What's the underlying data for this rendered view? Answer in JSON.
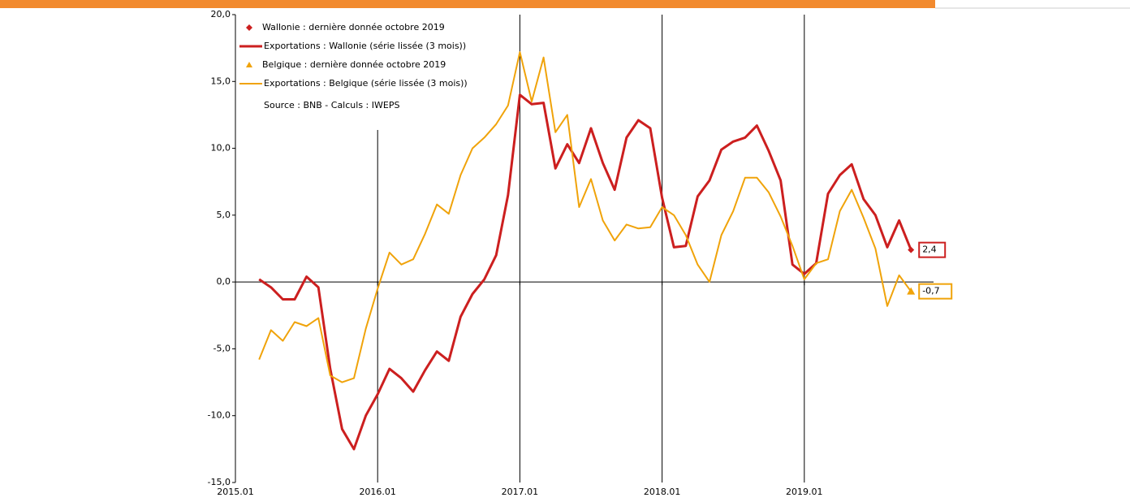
{
  "chart_data": {
    "type": "line",
    "x": [
      "2015.03",
      "2015.04",
      "2015.05",
      "2015.06",
      "2015.07",
      "2015.08",
      "2015.09",
      "2015.10",
      "2015.11",
      "2015.12",
      "2016.01",
      "2016.02",
      "2016.03",
      "2016.04",
      "2016.05",
      "2016.06",
      "2016.07",
      "2016.08",
      "2016.09",
      "2016.10",
      "2016.11",
      "2016.12",
      "2017.01",
      "2017.02",
      "2017.03",
      "2017.04",
      "2017.05",
      "2017.06",
      "2017.07",
      "2017.08",
      "2017.09",
      "2017.10",
      "2017.11",
      "2017.12",
      "2018.01",
      "2018.02",
      "2018.03",
      "2018.04",
      "2018.05",
      "2018.06",
      "2018.07",
      "2018.08",
      "2018.09",
      "2018.10",
      "2018.11",
      "2018.12",
      "2019.01",
      "2019.02",
      "2019.03",
      "2019.04",
      "2019.05",
      "2019.06",
      "2019.07",
      "2019.08",
      "2019.09",
      "2019.10"
    ],
    "series": [
      {
        "name": "Wallonie : dernière donnée octobre 2019",
        "color": "#cc1f1f",
        "marker": "diamond",
        "x": [
          "2019.10"
        ],
        "values": [
          2.4
        ],
        "value_labels": [
          "2,4"
        ]
      },
      {
        "name": "Exportations : Wallonie (série lissée (3 mois))",
        "color": "#cc1f1f",
        "width": 3,
        "values": [
          0.2,
          -0.4,
          -1.3,
          -1.3,
          0.4,
          -0.4,
          -6.5,
          -11.0,
          -12.5,
          -10.0,
          -8.4,
          -6.5,
          -7.2,
          -8.2,
          -6.6,
          -5.2,
          -5.9,
          -2.6,
          -0.9,
          0.2,
          2.0,
          6.5,
          14.0,
          13.3,
          13.4,
          8.5,
          10.3,
          8.9,
          11.5,
          8.9,
          6.9,
          10.8,
          12.1,
          11.5,
          6.3,
          2.6,
          2.7,
          6.4,
          7.6,
          9.9,
          10.5,
          10.8,
          11.7,
          9.8,
          7.6,
          1.3,
          0.6,
          1.4,
          6.6,
          8.0,
          8.8,
          6.2,
          5.0,
          2.6,
          4.6,
          2.4
        ]
      },
      {
        "name": "Belgique : dernière donnée octobre 2019",
        "color": "#f0a30a",
        "marker": "triangle",
        "x": [
          "2019.10"
        ],
        "values": [
          -0.7
        ],
        "value_labels": [
          "-0,7"
        ]
      },
      {
        "name": "Exportations : Belgique (série lissée (3 mois))",
        "color": "#f0a30a",
        "width": 2,
        "values": [
          -5.8,
          -3.6,
          -4.4,
          -3.0,
          -3.3,
          -2.7,
          -7.0,
          -7.5,
          -7.2,
          -3.5,
          -0.5,
          2.2,
          1.3,
          1.7,
          3.6,
          5.8,
          5.1,
          8.0,
          10.0,
          10.8,
          11.8,
          13.2,
          17.2,
          13.5,
          16.8,
          11.2,
          12.5,
          5.6,
          7.7,
          4.6,
          3.1,
          4.3,
          4.0,
          4.1,
          5.6,
          5.0,
          3.5,
          1.3,
          0.0,
          3.5,
          5.3,
          7.8,
          7.8,
          6.7,
          4.9,
          2.7,
          0.2,
          1.4,
          1.7,
          5.3,
          6.9,
          4.8,
          2.5,
          -1.8,
          0.5,
          -0.7
        ]
      }
    ],
    "source": "Source : BNB - Calculs : IWEPS",
    "ylim": [
      -15,
      20
    ],
    "yticks": [
      {
        "value": -15,
        "label": "-15,0"
      },
      {
        "value": -10,
        "label": "-10,0"
      },
      {
        "value": -5,
        "label": "-5,0"
      },
      {
        "value": 0,
        "label": "0,0"
      },
      {
        "value": 5,
        "label": "5,0"
      },
      {
        "value": 10,
        "label": "10,0"
      },
      {
        "value": 15,
        "label": "15,0"
      },
      {
        "value": 20,
        "label": "20,0"
      }
    ],
    "xlim": [
      "2015.01",
      "2019.12"
    ],
    "xticks": [
      "2015.01",
      "2016.01",
      "2017.01",
      "2018.01",
      "2019.01"
    ],
    "grid": true
  }
}
